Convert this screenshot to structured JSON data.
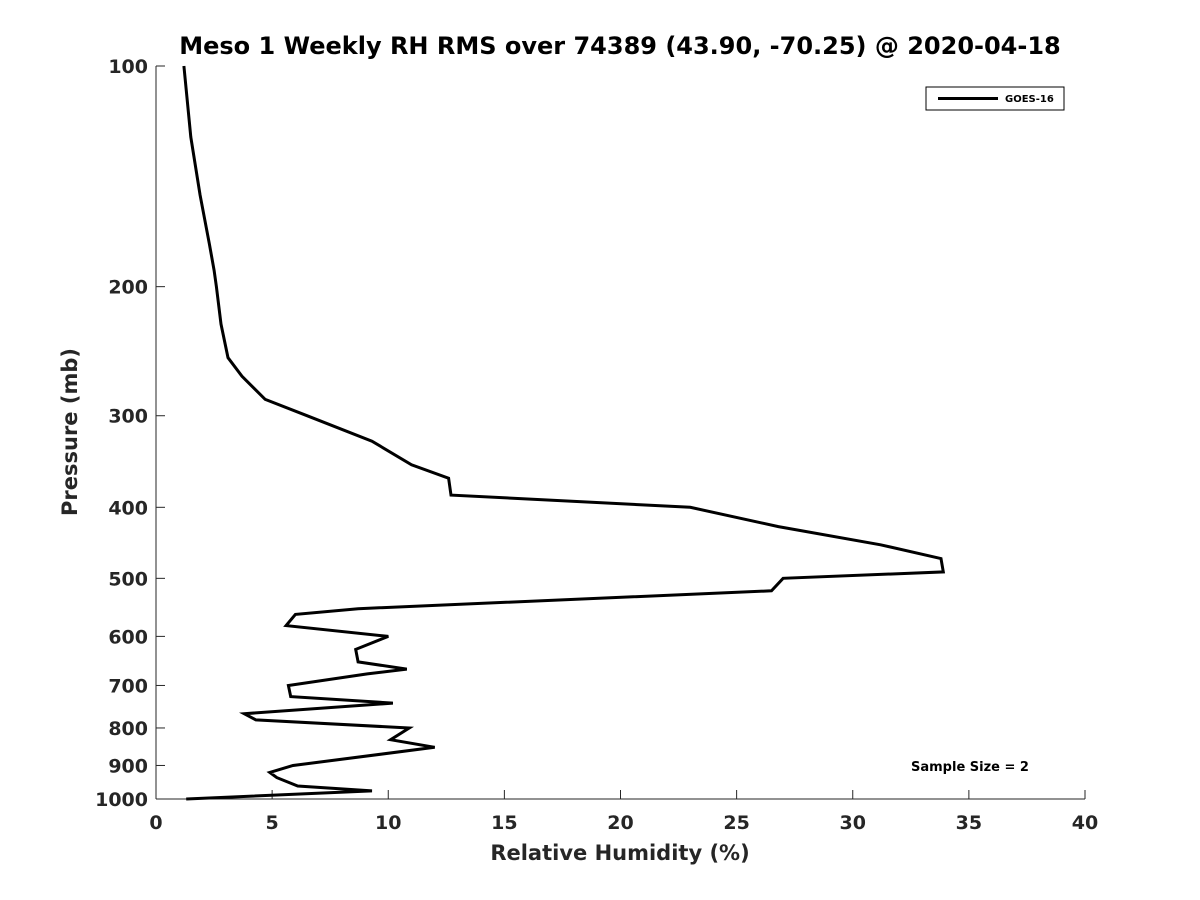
{
  "chart_data": {
    "type": "line",
    "title": "Meso 1 Weekly RH RMS over 74389 (43.90, -70.25) @ 2020-04-18",
    "xlabel": "Relative Humidity (%)",
    "ylabel": "Pressure (mb)",
    "xlim": [
      0,
      40
    ],
    "ylim": [
      100,
      1000
    ],
    "y_scale": "log",
    "y_reversed": true,
    "grid": false,
    "legend_position": "top-right",
    "x_ticks": [
      "0",
      "5",
      "10",
      "15",
      "20",
      "25",
      "30",
      "35",
      "40"
    ],
    "y_ticks": [
      "100",
      "200",
      "300",
      "400",
      "500",
      "600",
      "700",
      "800",
      "900",
      "1000"
    ],
    "annotation": "Sample Size = 2",
    "series": [
      {
        "name": "GOES-16",
        "color": "#000000",
        "points": [
          [
            1.2,
            100
          ],
          [
            1.5,
            125
          ],
          [
            1.9,
            150
          ],
          [
            2.3,
            175
          ],
          [
            2.5,
            190
          ],
          [
            2.6,
            200
          ],
          [
            2.8,
            225
          ],
          [
            3.1,
            250
          ],
          [
            3.7,
            265
          ],
          [
            4.7,
            285
          ],
          [
            6.5,
            300
          ],
          [
            9.3,
            325
          ],
          [
            11.0,
            350
          ],
          [
            12.6,
            365
          ],
          [
            12.7,
            385
          ],
          [
            23.0,
            400
          ],
          [
            26.8,
            425
          ],
          [
            31.2,
            450
          ],
          [
            33.8,
            470
          ],
          [
            33.9,
            490
          ],
          [
            27.0,
            500
          ],
          [
            26.5,
            520
          ],
          [
            8.7,
            550
          ],
          [
            6.0,
            560
          ],
          [
            5.6,
            580
          ],
          [
            10.0,
            600
          ],
          [
            8.6,
            625
          ],
          [
            8.7,
            650
          ],
          [
            10.8,
            665
          ],
          [
            9.1,
            675
          ],
          [
            5.7,
            700
          ],
          [
            5.8,
            725
          ],
          [
            10.2,
            740
          ],
          [
            3.8,
            765
          ],
          [
            4.3,
            780
          ],
          [
            10.9,
            800
          ],
          [
            10.1,
            830
          ],
          [
            12.0,
            850
          ],
          [
            5.9,
            900
          ],
          [
            4.9,
            920
          ],
          [
            5.2,
            935
          ],
          [
            6.1,
            960
          ],
          [
            9.3,
            975
          ],
          [
            1.3,
            1000
          ]
        ]
      }
    ]
  }
}
